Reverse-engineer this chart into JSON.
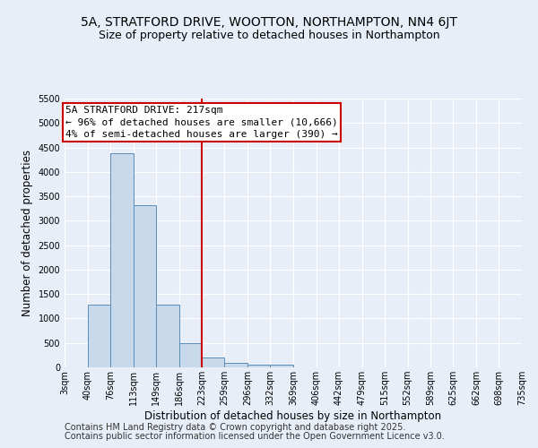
{
  "title": "5A, STRATFORD DRIVE, WOOTTON, NORTHAMPTON, NN4 6JT",
  "subtitle": "Size of property relative to detached houses in Northampton",
  "xlabel": "Distribution of detached houses by size in Northampton",
  "ylabel": "Number of detached properties",
  "bin_edges": [
    3,
    40,
    76,
    113,
    149,
    186,
    223,
    259,
    296,
    332,
    369,
    406,
    442,
    479,
    515,
    552,
    589,
    625,
    662,
    698,
    735
  ],
  "bar_heights": [
    0,
    1280,
    4380,
    3310,
    1290,
    500,
    200,
    90,
    55,
    55,
    0,
    0,
    0,
    0,
    0,
    0,
    0,
    0,
    0,
    0
  ],
  "bar_color": "#c9d9ec",
  "bar_edge_color": "#5b8db8",
  "vline_x": 223,
  "vline_color": "#cc0000",
  "ylim": [
    0,
    5500
  ],
  "yticks": [
    0,
    500,
    1000,
    1500,
    2000,
    2500,
    3000,
    3500,
    4000,
    4500,
    5000,
    5500
  ],
  "annotation_title": "5A STRATFORD DRIVE: 217sqm",
  "annotation_line1": "← 96% of detached houses are smaller (10,666)",
  "annotation_line2": "4% of semi-detached houses are larger (390) →",
  "annotation_box_color": "#ffffff",
  "annotation_box_edge_color": "#cc0000",
  "footer1": "Contains HM Land Registry data © Crown copyright and database right 2025.",
  "footer2": "Contains public sector information licensed under the Open Government Licence v3.0.",
  "background_color": "#e8eef8",
  "plot_background": "#e8eef8",
  "grid_color": "#ffffff",
  "title_fontsize": 10,
  "subtitle_fontsize": 9,
  "label_fontsize": 8.5,
  "tick_fontsize": 7,
  "footer_fontsize": 7,
  "annotation_fontsize": 8
}
